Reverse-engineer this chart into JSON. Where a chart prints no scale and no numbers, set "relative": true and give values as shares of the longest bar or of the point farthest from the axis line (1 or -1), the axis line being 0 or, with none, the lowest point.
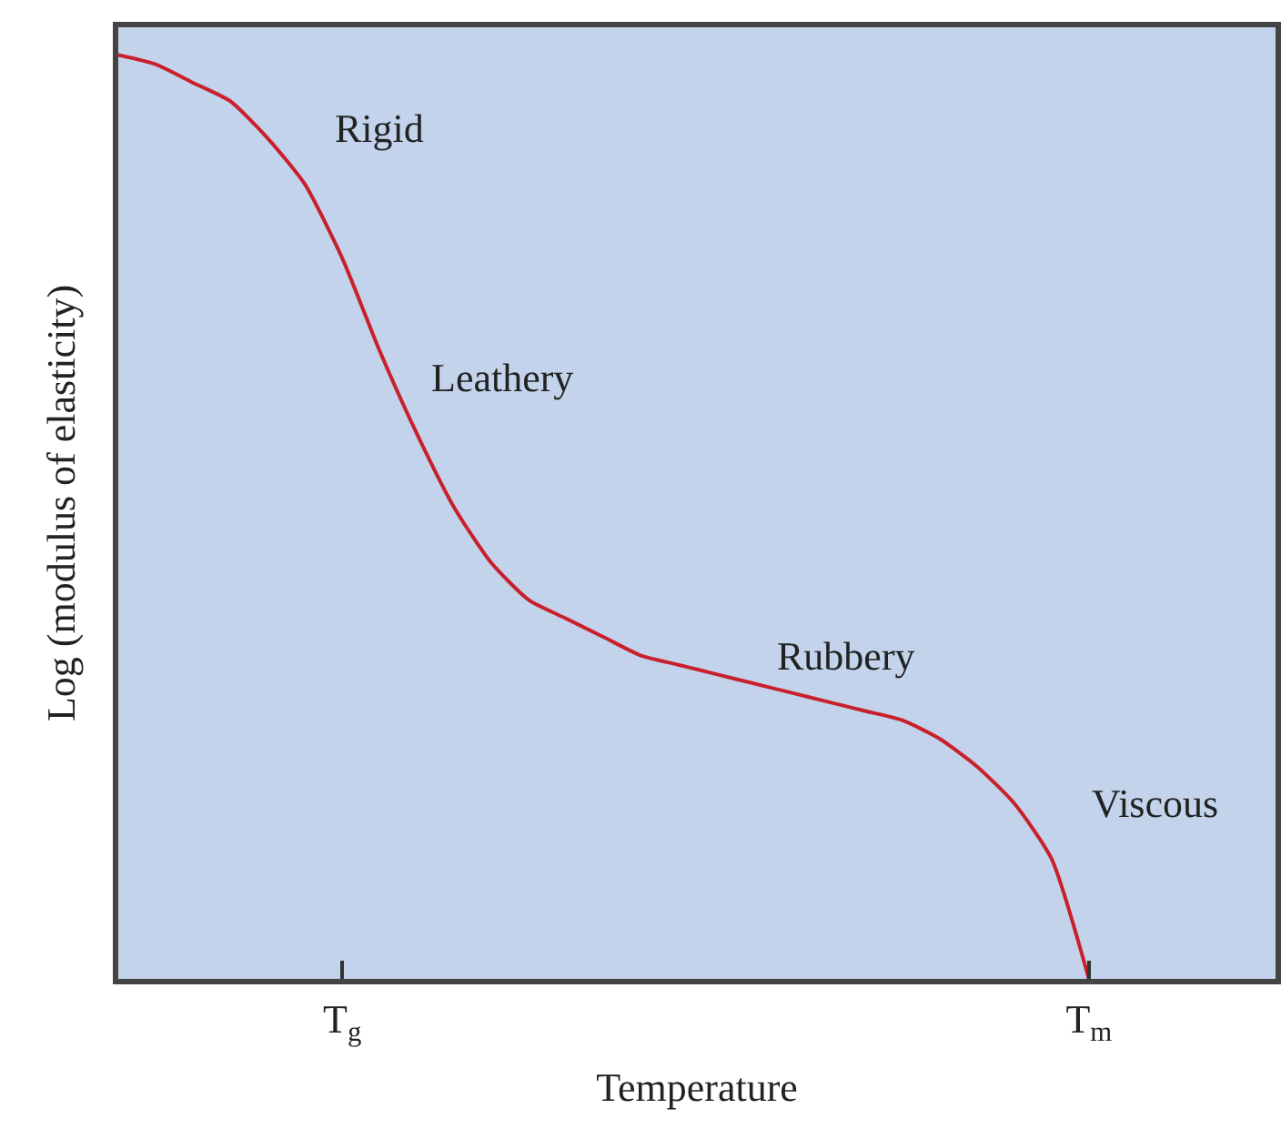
{
  "chart_data": {
    "type": "line",
    "relative": true,
    "xlabel": "Temperature",
    "ylabel": "Log (modulus of elasticity)",
    "categories": [
      null,
      null,
      null,
      null,
      null,
      null,
      "T$_{g}$",
      null,
      null,
      null,
      null,
      null,
      null,
      null,
      null,
      null,
      null,
      null,
      null,
      null,
      null,
      null,
      null,
      null,
      null,
      null,
      "T$_{m}$",
      null,
      null,
      null,
      null,
      null
    ],
    "series": [
      {
        "color": "#c8202c",
        "values": [
          1.0,
          0.99,
          0.97,
          0.95,
          0.91,
          0.86,
          0.78,
          0.68,
          0.59,
          0.51,
          0.45,
          0.41,
          0.39,
          0.37,
          0.35,
          0.34,
          0.33,
          0.32,
          0.31,
          0.3,
          0.29,
          0.28,
          0.26,
          0.23,
          0.19,
          0.13,
          0.0,
          null,
          null,
          null,
          null,
          null
        ]
      }
    ],
    "annotations": [
      "Rigid",
      "Leathery",
      "Rubbery",
      "Viscous"
    ],
    "marker": "none",
    "line_style": "solid",
    "grid": false
  }
}
